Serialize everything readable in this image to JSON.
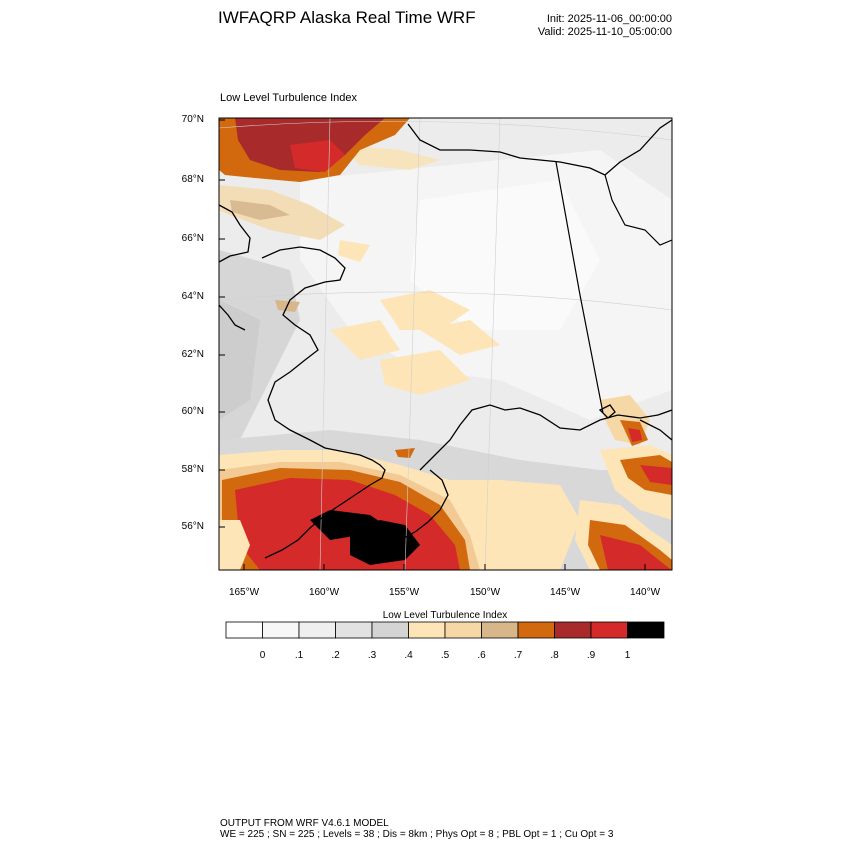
{
  "header": {
    "title": "IWFAQRP Alaska Real Time WRF",
    "init": "Init: 2025-11-06_00:00:00",
    "valid": "Valid: 2025-11-10_05:00:00"
  },
  "plot": {
    "title": "Low Level Turbulence Index",
    "lat_labels": [
      "70°N",
      "68°N",
      "66°N",
      "64°N",
      "62°N",
      "60°N",
      "58°N",
      "56°N"
    ],
    "lon_labels": [
      "165°W",
      "160°W",
      "155°W",
      "150°W",
      "145°W",
      "140°W"
    ]
  },
  "colorbar": {
    "label": "Low Level Turbulence Index",
    "ticks": [
      "0",
      ".1",
      ".2",
      ".3",
      ".4",
      ".5",
      ".6",
      ".7",
      ".8",
      ".9",
      "1"
    ],
    "colors": [
      "#ffffff",
      "#f7f7f7",
      "#efefef",
      "#e2e2e2",
      "#d4d4d4",
      "#fde5b7",
      "#f6d8a7",
      "#d7b68a",
      "#d2690e",
      "#a82a2a",
      "#d42a2a",
      "#000000"
    ]
  },
  "footer": {
    "line1": "OUTPUT FROM WRF V4.6.1 MODEL",
    "line2": "WE = 225 ; SN = 225 ; Levels = 38 ; Dis = 8km ; Phys Opt = 8 ; PBL Opt = 1 ; Cu Opt = 3"
  }
}
